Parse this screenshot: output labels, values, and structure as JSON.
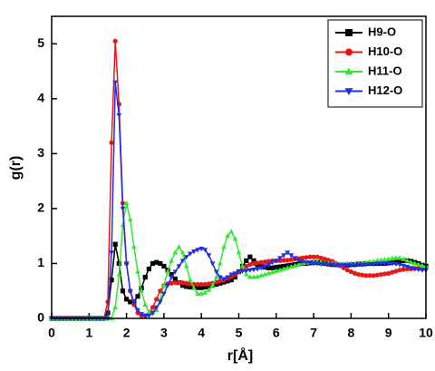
{
  "chart_data": {
    "type": "line",
    "x_label": "r[Å]",
    "y_label": "g(r)",
    "x": [
      0,
      0.1,
      0.2,
      0.3,
      0.4,
      0.5,
      0.6,
      0.7,
      0.8,
      0.9,
      1,
      1.1,
      1.2,
      1.3,
      1.4,
      1.5,
      1.6,
      1.7,
      1.8,
      1.9,
      2,
      2.1,
      2.2,
      2.3,
      2.4,
      2.5,
      2.6,
      2.7,
      2.8,
      2.9,
      3,
      3.1,
      3.2,
      3.3,
      3.4,
      3.5,
      3.6,
      3.7,
      3.8,
      3.9,
      4,
      4.1,
      4.2,
      4.3,
      4.4,
      4.5,
      4.6,
      4.7,
      4.8,
      4.9,
      5,
      5.1,
      5.2,
      5.3,
      5.4,
      5.5,
      5.6,
      5.7,
      5.8,
      5.9,
      6,
      6.1,
      6.2,
      6.3,
      6.4,
      6.5,
      6.6,
      6.7,
      6.8,
      6.9,
      7,
      7.1,
      7.2,
      7.3,
      7.4,
      7.5,
      7.6,
      7.7,
      7.8,
      7.9,
      8,
      8.1,
      8.2,
      8.3,
      8.4,
      8.5,
      8.6,
      8.7,
      8.8,
      8.9,
      9,
      9.1,
      9.2,
      9.3,
      9.4,
      9.5,
      9.6,
      9.7,
      9.8,
      9.9,
      10
    ],
    "series": [
      {
        "name": "H9-O",
        "color": "#000000",
        "marker": "square",
        "values": [
          0,
          0,
          0,
          0,
          0,
          0,
          0,
          0,
          0,
          0,
          0,
          0,
          0,
          0,
          0,
          0.1,
          0.7,
          1.35,
          1.0,
          0.5,
          0.35,
          0.3,
          0.3,
          0.4,
          0.55,
          0.75,
          0.9,
          1.0,
          1.02,
          1.0,
          0.95,
          0.88,
          0.8,
          0.72,
          0.65,
          0.6,
          0.58,
          0.57,
          0.56,
          0.56,
          0.56,
          0.57,
          0.58,
          0.6,
          0.62,
          0.64,
          0.66,
          0.68,
          0.7,
          0.75,
          0.85,
          0.95,
          1.05,
          1.12,
          1.05,
          0.98,
          0.95,
          0.93,
          0.92,
          0.92,
          0.93,
          0.94,
          0.95,
          0.96,
          0.97,
          0.98,
          0.99,
          1.0,
          1.0,
          1.01,
          1.02,
          1.02,
          1.01,
          1.0,
          0.99,
          0.98,
          0.98,
          0.97,
          0.97,
          0.97,
          0.98,
          0.98,
          0.99,
          0.99,
          1.0,
          1.0,
          1.0,
          1.0,
          1.0,
          1.0,
          1.01,
          1.02,
          1.03,
          1.04,
          1.05,
          1.05,
          1.04,
          1.02,
          1.0,
          0.97,
          0.95
        ]
      },
      {
        "name": "H10-O",
        "color": "#e8161b",
        "marker": "circle",
        "values": [
          0,
          0,
          0,
          0,
          0,
          0,
          0,
          0,
          0,
          0,
          0,
          0,
          0,
          0,
          0,
          0.3,
          3.2,
          5.05,
          3.9,
          2.1,
          1.0,
          0.5,
          0.25,
          0.1,
          0.05,
          0.05,
          0.08,
          0.2,
          0.35,
          0.5,
          0.6,
          0.63,
          0.64,
          0.65,
          0.65,
          0.65,
          0.64,
          0.63,
          0.62,
          0.62,
          0.62,
          0.62,
          0.63,
          0.64,
          0.66,
          0.68,
          0.7,
          0.73,
          0.76,
          0.8,
          0.85,
          0.9,
          0.95,
          0.98,
          1.0,
          1.01,
          1.02,
          1.03,
          1.04,
          1.05,
          1.05,
          1.05,
          1.06,
          1.06,
          1.07,
          1.08,
          1.09,
          1.1,
          1.11,
          1.12,
          1.12,
          1.12,
          1.1,
          1.08,
          1.06,
          1.04,
          1.0,
          0.96,
          0.92,
          0.88,
          0.85,
          0.82,
          0.8,
          0.79,
          0.78,
          0.78,
          0.78,
          0.79,
          0.8,
          0.81,
          0.82,
          0.84,
          0.86,
          0.88,
          0.89,
          0.9,
          0.9,
          0.91,
          0.91,
          0.92,
          0.92
        ]
      },
      {
        "name": "H11-O",
        "color": "#33e833",
        "marker": "triangle-up",
        "values": [
          0,
          0,
          0,
          0,
          0,
          0,
          0,
          0,
          0,
          0,
          0,
          0,
          0,
          0,
          0,
          0,
          0,
          0.2,
          0.8,
          1.7,
          2.1,
          1.8,
          1.3,
          0.85,
          0.5,
          0.25,
          0.12,
          0.1,
          0.15,
          0.35,
          0.6,
          0.85,
          1.05,
          1.2,
          1.3,
          1.2,
          0.95,
          0.7,
          0.55,
          0.45,
          0.45,
          0.47,
          0.52,
          0.6,
          0.75,
          1.0,
          1.3,
          1.5,
          1.58,
          1.45,
          1.2,
          0.95,
          0.8,
          0.75,
          0.75,
          0.76,
          0.78,
          0.8,
          0.82,
          0.84,
          0.86,
          0.88,
          0.9,
          0.92,
          0.94,
          0.96,
          0.98,
          1.0,
          1.01,
          1.02,
          1.03,
          1.03,
          1.02,
          1.01,
          1.0,
          1.0,
          0.99,
          0.99,
          0.99,
          1.0,
          1.0,
          1.0,
          1.0,
          1.01,
          1.02,
          1.03,
          1.04,
          1.05,
          1.06,
          1.07,
          1.08,
          1.09,
          1.1,
          1.1,
          1.08,
          1.05,
          1.02,
          1.0,
          0.98,
          0.96,
          0.95
        ]
      },
      {
        "name": "H12-O",
        "color": "#2030e0",
        "marker": "triangle-down",
        "values": [
          0,
          0,
          0,
          0,
          0,
          0,
          0,
          0,
          0,
          0,
          0,
          0,
          0,
          0,
          0,
          0,
          1.2,
          4.3,
          3.7,
          2.0,
          1.0,
          0.5,
          0.3,
          0.15,
          0.08,
          0.05,
          0.05,
          0.1,
          0.2,
          0.3,
          0.45,
          0.6,
          0.75,
          0.85,
          0.95,
          1.05,
          1.12,
          1.18,
          1.22,
          1.25,
          1.27,
          1.25,
          1.15,
          1.0,
          0.85,
          0.75,
          0.72,
          0.75,
          0.8,
          0.82,
          0.85,
          0.86,
          0.87,
          0.88,
          0.89,
          0.9,
          0.92,
          0.95,
          0.98,
          1.02,
          1.05,
          1.1,
          1.15,
          1.2,
          1.15,
          1.1,
          1.05,
          1.03,
          1.02,
          1.01,
          1.0,
          1.0,
          0.99,
          0.99,
          0.98,
          0.98,
          0.97,
          0.97,
          0.97,
          0.97,
          0.97,
          0.97,
          0.98,
          0.98,
          0.98,
          0.99,
          0.99,
          1.0,
          1.0,
          1.0,
          1.0,
          1.0,
          0.99,
          0.98,
          0.96,
          0.94,
          0.92,
          0.9,
          0.89,
          0.88,
          0.88
        ]
      }
    ],
    "xlim": [
      0,
      10
    ],
    "xticks": [
      0,
      1,
      2,
      3,
      4,
      5,
      6,
      7,
      8,
      9,
      10
    ],
    "ylim": [
      0,
      5.5
    ],
    "yticks": [
      0,
      1,
      2,
      3,
      4,
      5
    ],
    "grid": false,
    "legend": "upper right"
  }
}
